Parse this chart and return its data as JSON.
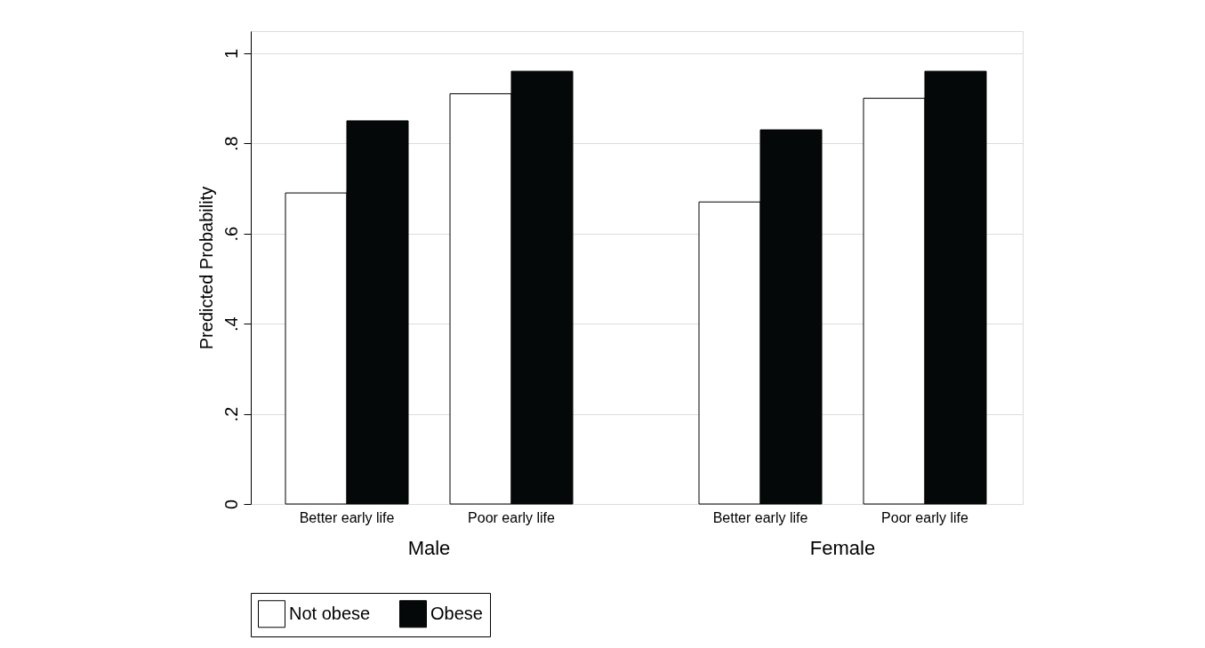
{
  "chart_data": {
    "type": "bar",
    "ylabel": "Predicted Probability",
    "categories": [
      "Better early life",
      "Poor early life",
      "Better early life",
      "Poor early life"
    ],
    "series": [
      {
        "name": "Not obese",
        "color": "#ffffff",
        "values": [
          0.69,
          0.91,
          0.67,
          0.9
        ]
      },
      {
        "name": "Obese",
        "color": "#050809",
        "values": [
          0.85,
          0.96,
          0.83,
          0.96
        ]
      }
    ],
    "annotations": [
      "Male",
      "Female"
    ],
    "ylim": [
      0,
      1.049
    ],
    "yticks": [
      0,
      {
        "value": 0.2,
        "label": ".2"
      },
      {
        "value": 0.4,
        "label": ".4"
      },
      {
        "value": 0.6,
        "label": ".6"
      },
      {
        "value": 0.8,
        "label": ".8"
      },
      1
    ],
    "grid": "y",
    "legend": "bottom"
  }
}
